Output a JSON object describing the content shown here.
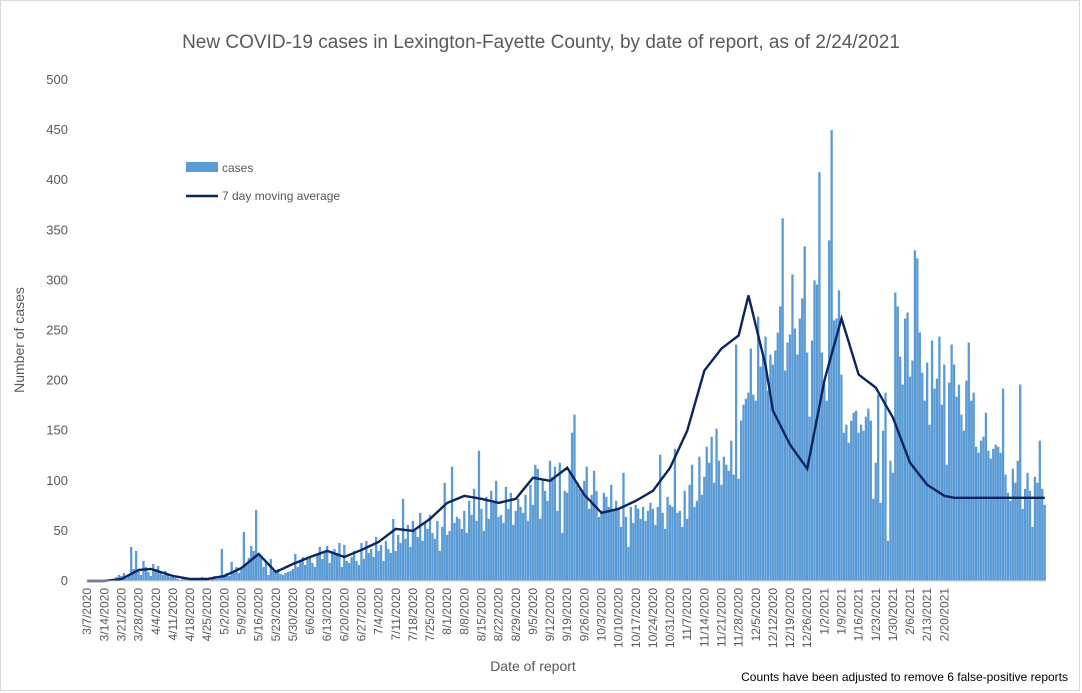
{
  "chart_data": {
    "type": "bar",
    "title": "New COVID-19 cases in Lexington-Fayette County, by date of report, as of 2/24/2021",
    "xlabel": "Date of report",
    "ylabel": "Number of cases",
    "ylim": [
      0,
      500
    ],
    "yticks": [
      0,
      50,
      100,
      150,
      200,
      250,
      300,
      350,
      400,
      450,
      500
    ],
    "x_tick_labels": [
      "3/7/2020",
      "3/14/2020",
      "3/21/2020",
      "3/28/2020",
      "4/4/2020",
      "4/11/2020",
      "4/18/2020",
      "4/25/2020",
      "5/2/2020",
      "5/9/2020",
      "5/16/2020",
      "5/23/2020",
      "5/30/2020",
      "6/6/2020",
      "6/13/2020",
      "6/20/2020",
      "6/27/2020",
      "7/4/2020",
      "7/11/2020",
      "7/18/2020",
      "7/25/2020",
      "8/1/2020",
      "8/8/2020",
      "8/15/2020",
      "8/22/2020",
      "8/29/2020",
      "9/5/2020",
      "9/12/2020",
      "9/19/2020",
      "9/26/2020",
      "10/3/2020",
      "10/10/2020",
      "10/17/2020",
      "10/24/2020",
      "10/31/2020",
      "11/7/2020",
      "11/14/2020",
      "11/21/2020",
      "11/28/2020",
      "12/5/2020",
      "12/12/2020",
      "12/19/2020",
      "12/26/2020",
      "1/2/2021",
      "1/9/2021",
      "1/16/2021",
      "1/23/2021",
      "1/30/2021",
      "2/6/2021",
      "2/13/2021",
      "2/20/2021"
    ],
    "grid": false,
    "legend_position": "top-left",
    "series": [
      {
        "name": "cases",
        "type": "bar",
        "color": "#5b9bd5",
        "values": [
          0,
          0,
          0,
          0,
          0,
          0,
          0,
          0,
          1,
          1,
          0,
          2,
          4,
          6,
          5,
          8,
          3,
          7,
          34,
          12,
          30,
          11,
          6,
          20,
          14,
          9,
          5,
          17,
          12,
          15,
          8,
          6,
          10,
          7,
          4,
          5,
          3,
          2,
          1,
          3,
          2,
          2,
          1,
          2,
          2,
          3,
          1,
          4,
          2,
          2,
          1,
          3,
          5,
          2,
          3,
          32,
          6,
          8,
          5,
          19,
          10,
          14,
          8,
          12,
          49,
          18,
          23,
          35,
          30,
          71,
          28,
          24,
          14,
          19,
          6,
          22,
          10,
          8,
          12,
          7,
          6,
          8,
          9,
          10,
          12,
          27,
          14,
          20,
          24,
          16,
          22,
          24,
          18,
          14,
          26,
          34,
          22,
          28,
          35,
          18,
          30,
          32,
          28,
          38,
          14,
          36,
          20,
          18,
          24,
          30,
          20,
          16,
          38,
          22,
          40,
          28,
          32,
          24,
          44,
          30,
          36,
          20,
          40,
          32,
          28,
          62,
          30,
          46,
          38,
          82,
          42,
          56,
          34,
          60,
          50,
          44,
          68,
          40,
          58,
          52,
          66,
          48,
          42,
          60,
          30,
          54,
          98,
          46,
          50,
          114,
          58,
          64,
          62,
          52,
          70,
          48,
          80,
          66,
          92,
          60,
          130,
          72,
          50,
          84,
          62,
          90,
          78,
          100,
          64,
          66,
          58,
          94,
          72,
          88,
          56,
          70,
          82,
          74,
          68,
          86,
          60,
          96,
          76,
          116,
          112,
          62,
          100,
          90,
          80,
          120,
          104,
          114,
          70,
          118,
          48,
          90,
          88,
          110,
          148,
          166,
          96,
          92,
          88,
          100,
          114,
          72,
          86,
          110,
          90,
          64,
          70,
          88,
          84,
          74,
          96,
          70,
          80,
          72,
          54,
          108,
          64,
          34,
          74,
          58,
          76,
          72,
          62,
          74,
          60,
          70,
          78,
          72,
          56,
          74,
          126,
          68,
          52,
          84,
          76,
          74,
          132,
          68,
          70,
          54,
          90,
          62,
          96,
          116,
          74,
          80,
          124,
          86,
          104,
          134,
          118,
          144,
          98,
          152,
          120,
          96,
          124,
          116,
          110,
          140,
          106,
          236,
          102,
          160,
          176,
          182,
          188,
          232,
          186,
          180,
          264,
          214,
          224,
          244,
          190,
          226,
          216,
          230,
          248,
          274,
          362,
          210,
          238,
          246,
          306,
          252,
          226,
          262,
          282,
          334,
          228,
          164,
          240,
          300,
          296,
          408,
          228,
          196,
          180,
          340,
          450,
          260,
          262,
          290,
          206,
          148,
          156,
          138,
          160,
          168,
          170,
          148,
          156,
          150,
          164,
          172,
          160,
          82,
          118,
          186,
          78,
          150,
          188,
          40,
          120,
          108,
          288,
          274,
          224,
          196,
          262,
          268,
          204,
          220,
          330,
          322,
          248,
          208,
          180,
          218,
          156,
          240,
          192,
          202,
          244,
          176,
          216,
          116,
          198,
          236,
          216,
          184,
          196,
          166,
          150,
          200,
          238,
          180,
          188,
          134,
          128,
          140,
          144,
          168,
          130,
          122,
          132,
          136,
          134,
          128,
          192,
          106,
          88,
          80,
          112,
          98,
          120,
          196,
          72,
          92,
          108,
          90,
          54,
          104,
          98,
          140,
          92,
          76
        ]
      },
      {
        "name": "7 day moving average",
        "type": "line",
        "color": "#0c2560",
        "keypoints": [
          [
            "3/7/2020",
            0
          ],
          [
            "3/14/2020",
            0
          ],
          [
            "3/21/2020",
            2
          ],
          [
            "3/28/2020",
            11
          ],
          [
            "4/2/2020",
            12
          ],
          [
            "4/11/2020",
            5
          ],
          [
            "4/18/2020",
            2
          ],
          [
            "4/25/2020",
            2
          ],
          [
            "5/2/2020",
            5
          ],
          [
            "5/9/2020",
            13
          ],
          [
            "5/16/2020",
            27
          ],
          [
            "5/23/2020",
            9
          ],
          [
            "5/30/2020",
            17
          ],
          [
            "6/6/2020",
            24
          ],
          [
            "6/13/2020",
            30
          ],
          [
            "6/20/2020",
            24
          ],
          [
            "6/27/2020",
            31
          ],
          [
            "7/4/2020",
            39
          ],
          [
            "7/11/2020",
            52
          ],
          [
            "7/18/2020",
            50
          ],
          [
            "7/25/2020",
            62
          ],
          [
            "8/1/2020",
            78
          ],
          [
            "8/8/2020",
            85
          ],
          [
            "8/15/2020",
            82
          ],
          [
            "8/22/2020",
            78
          ],
          [
            "8/29/2020",
            82
          ],
          [
            "9/5/2020",
            103
          ],
          [
            "9/12/2020",
            100
          ],
          [
            "9/19/2020",
            113
          ],
          [
            "9/26/2020",
            86
          ],
          [
            "10/3/2020",
            68
          ],
          [
            "10/10/2020",
            72
          ],
          [
            "10/17/2020",
            80
          ],
          [
            "10/24/2020",
            90
          ],
          [
            "10/31/2020",
            113
          ],
          [
            "11/7/2020",
            150
          ],
          [
            "11/14/2020",
            210
          ],
          [
            "11/21/2020",
            232
          ],
          [
            "11/28/2020",
            245
          ],
          [
            "12/2/2020",
            285
          ],
          [
            "12/5/2020",
            255
          ],
          [
            "12/9/2020",
            215
          ],
          [
            "12/12/2020",
            170
          ],
          [
            "12/19/2020",
            136
          ],
          [
            "12/26/2020",
            112
          ],
          [
            "1/2/2021",
            200
          ],
          [
            "1/9/2021",
            262
          ],
          [
            "1/16/2021",
            206
          ],
          [
            "1/23/2021",
            193
          ],
          [
            "1/30/2021",
            163
          ],
          [
            "2/6/2021",
            118
          ],
          [
            "2/13/2021",
            96
          ],
          [
            "2/20/2021",
            85
          ],
          [
            "2/24/2021",
            83
          ]
        ]
      }
    ],
    "annotations": [
      "Counts have been adjusted to remove 6 false-positive reports"
    ]
  }
}
